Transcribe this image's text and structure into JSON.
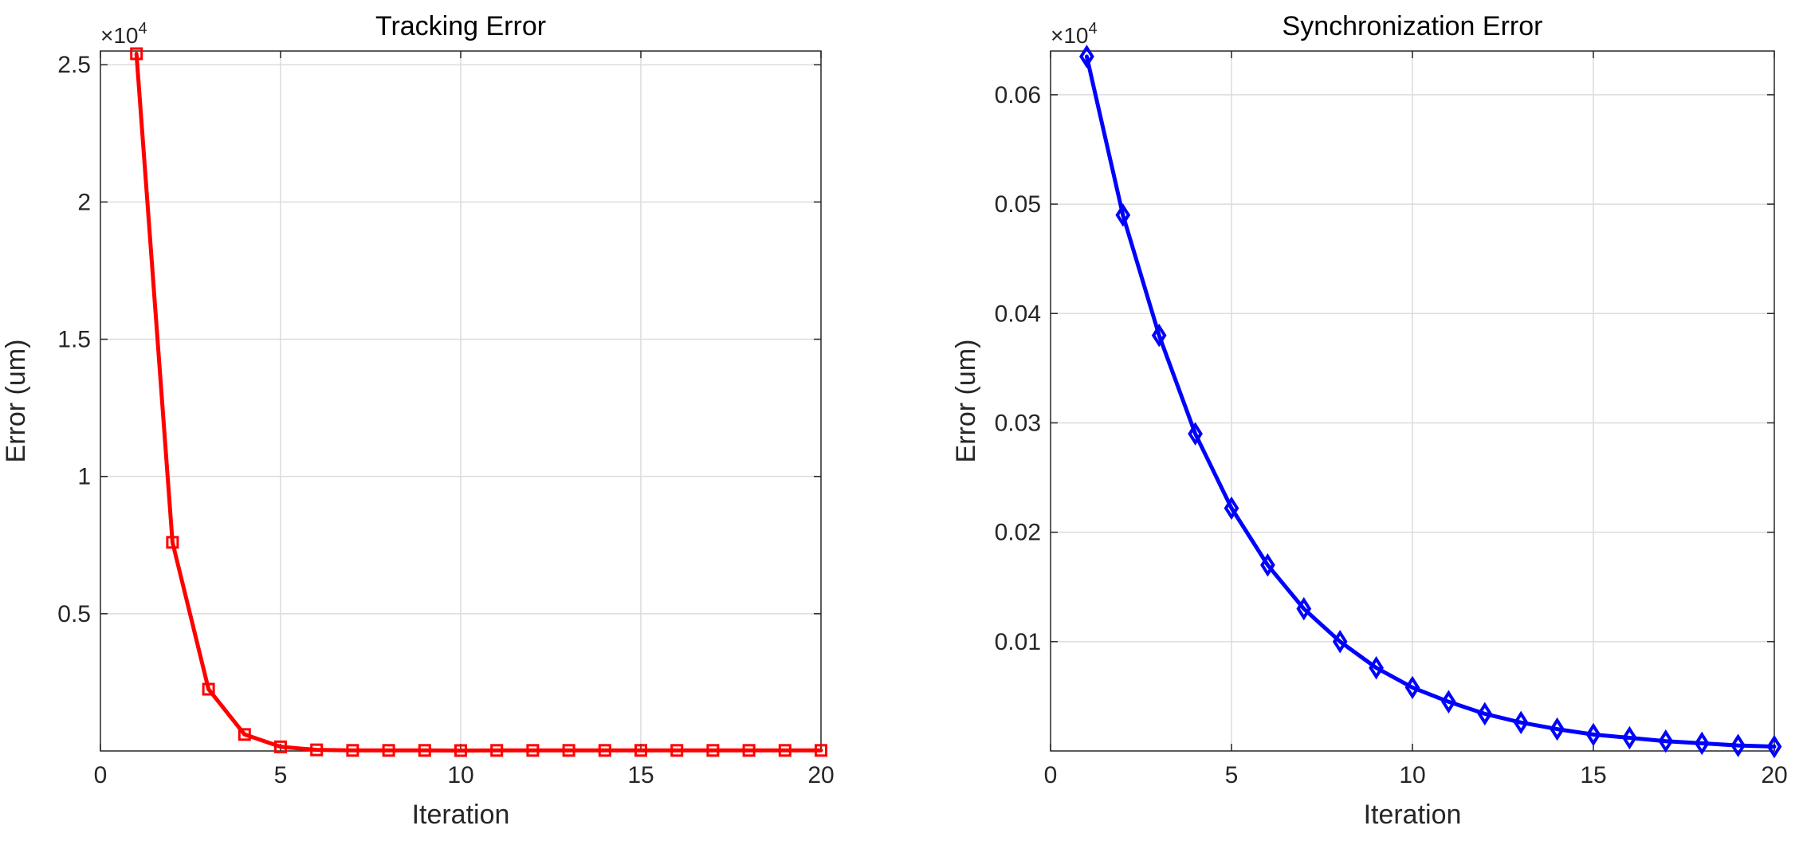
{
  "chart_data": [
    {
      "type": "line",
      "title": "Tracking Error",
      "xlabel": "Iteration",
      "ylabel": "Error (um)",
      "exponent_label": "×10",
      "exponent_power": "4",
      "xlim": [
        0,
        20
      ],
      "ylim": [
        0,
        2.55
      ],
      "xticks": [
        0,
        5,
        10,
        15,
        20
      ],
      "xtick_labels": [
        "0",
        "5",
        "10",
        "15",
        "20"
      ],
      "yticks": [
        0.5,
        1,
        1.5,
        2,
        2.5
      ],
      "ytick_labels": [
        "0.5",
        "1",
        "1.5",
        "2",
        "2.5"
      ],
      "grid": true,
      "series": [
        {
          "color": "#ff0000",
          "marker": "square",
          "x": [
            1,
            2,
            3,
            4,
            5,
            6,
            7,
            8,
            9,
            10,
            11,
            12,
            13,
            14,
            15,
            16,
            17,
            18,
            19,
            20
          ],
          "y": [
            2.54,
            0.76,
            0.225,
            0.06,
            0.015,
            0.004,
            0.002,
            0.002,
            0.002,
            0.0015,
            0.002,
            0.002,
            0.002,
            0.002,
            0.002,
            0.002,
            0.002,
            0.002,
            0.002,
            0.002
          ]
        }
      ]
    },
    {
      "type": "line",
      "title": "Synchronization Error",
      "xlabel": "Iteration",
      "ylabel": "Error (um)",
      "exponent_label": "×10",
      "exponent_power": "4",
      "xlim": [
        0,
        20
      ],
      "ylim": [
        0,
        0.064
      ],
      "xticks": [
        0,
        5,
        10,
        15,
        20
      ],
      "xtick_labels": [
        "0",
        "5",
        "10",
        "15",
        "20"
      ],
      "yticks": [
        0.01,
        0.02,
        0.03,
        0.04,
        0.05,
        0.06
      ],
      "ytick_labels": [
        "0.01",
        "0.02",
        "0.03",
        "0.04",
        "0.05",
        "0.06"
      ],
      "grid": true,
      "series": [
        {
          "color": "#0000ff",
          "marker": "diamond",
          "x": [
            1,
            2,
            3,
            4,
            5,
            6,
            7,
            8,
            9,
            10,
            11,
            12,
            13,
            14,
            15,
            16,
            17,
            18,
            19,
            20
          ],
          "y": [
            0.0635,
            0.049,
            0.038,
            0.029,
            0.0222,
            0.017,
            0.013,
            0.01,
            0.0076,
            0.0058,
            0.0045,
            0.0034,
            0.0026,
            0.002,
            0.0015,
            0.0012,
            0.0009,
            0.0007,
            0.0005,
            0.0004
          ]
        }
      ]
    }
  ]
}
